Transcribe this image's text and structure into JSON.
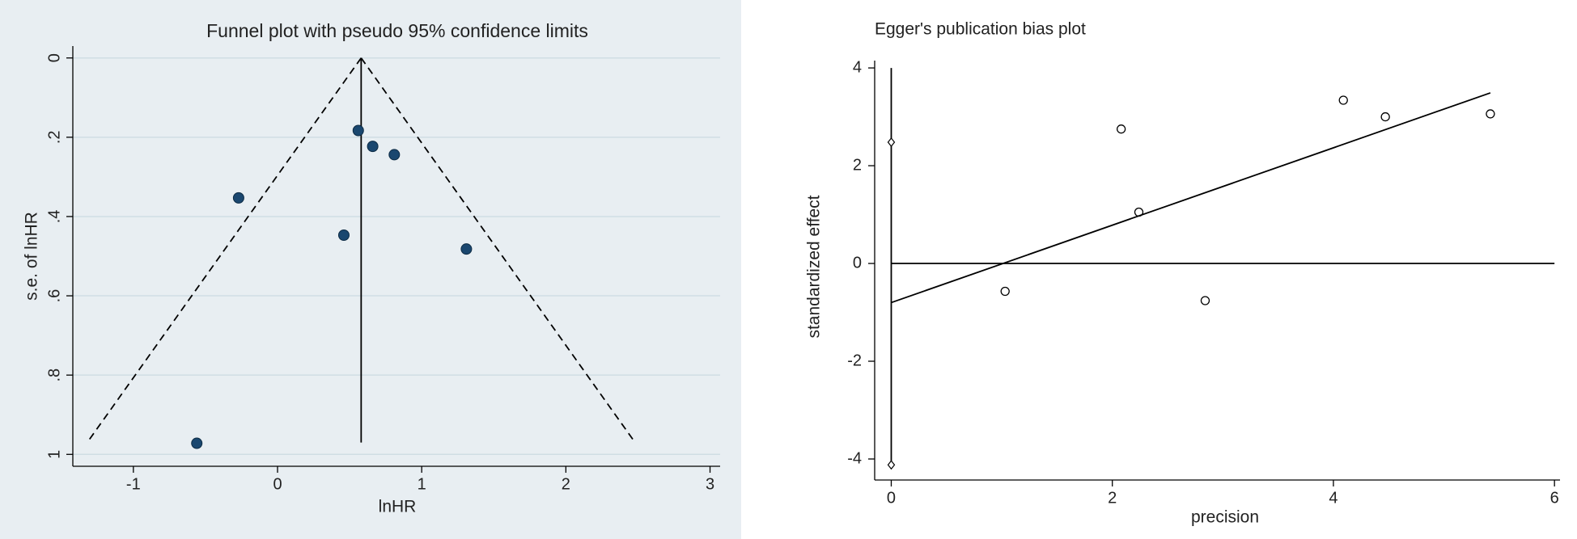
{
  "chart_data": [
    {
      "type": "scatter",
      "title": "Funnel plot with pseudo 95% confidence limits",
      "x_label": "lnHR",
      "y_label": "s.e. of lnHR",
      "xlim": [
        -1.42,
        3.07
      ],
      "ylim": [
        -0.03,
        1.03
      ],
      "y_reversed": true,
      "xticks": [
        -1,
        0,
        1,
        2,
        3
      ],
      "yticks": [
        {
          "value": 0,
          "label": "0"
        },
        {
          "value": 0.2,
          "label": ".2"
        },
        {
          "value": 0.4,
          "label": ".4"
        },
        {
          "value": 0.6,
          "label": ".6"
        },
        {
          "value": 0.8,
          "label": ".8"
        },
        {
          "value": 1,
          "label": "1"
        }
      ],
      "grid": true,
      "background": "#e8eef2",
      "grid_color": "#d0dde4",
      "points": {
        "x": [
          0.56,
          0.66,
          0.81,
          -0.27,
          0.46,
          1.31,
          -0.56
        ],
        "y": [
          0.183,
          0.223,
          0.244,
          0.353,
          0.447,
          0.482,
          0.972
        ],
        "marker": "filled-circle",
        "color": "#1a476f"
      },
      "lines": [
        {
          "x": [
            0.58,
            0.58
          ],
          "y": [
            0,
            0.97
          ],
          "dashed": false
        },
        {
          "x": [
            0.58,
            -1.32
          ],
          "y": [
            0,
            0.97
          ],
          "dashed": true
        },
        {
          "x": [
            0.58,
            2.48
          ],
          "y": [
            0,
            0.97
          ],
          "dashed": true
        }
      ]
    },
    {
      "type": "scatter",
      "title": "Egger's publication bias plot",
      "x_label": "precision",
      "y_label": "standardized effect",
      "xlim": [
        -0.15,
        6.05
      ],
      "ylim": [
        -4.43,
        4.15
      ],
      "y_reversed": false,
      "xticks": [
        0,
        2,
        4,
        6
      ],
      "yticks": [
        -4,
        -2,
        0,
        2,
        4
      ],
      "grid": false,
      "background": "#ffffff",
      "points": {
        "x": [
          1.03,
          2.08,
          2.24,
          2.84,
          4.09,
          4.47,
          5.42
        ],
        "y": [
          -0.57,
          2.75,
          1.05,
          -0.76,
          3.34,
          3.0,
          3.06
        ],
        "marker": "hollow-circle",
        "color": "#000000"
      },
      "intercept_points": {
        "x": [
          0,
          0
        ],
        "y": [
          2.48,
          -4.12
        ],
        "marker": "diamond",
        "color": "#000000"
      },
      "lines": [
        {
          "x": [
            0,
            0
          ],
          "y": [
            4,
            -4.12
          ],
          "dashed": false
        },
        {
          "x": [
            0,
            6
          ],
          "y": [
            0,
            0
          ],
          "dashed": false
        },
        {
          "x": [
            0,
            5.42
          ],
          "y": [
            -0.8,
            3.49
          ],
          "dashed": false
        }
      ]
    }
  ]
}
